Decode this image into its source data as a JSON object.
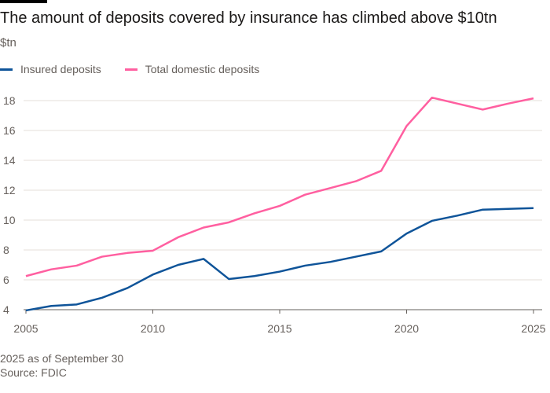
{
  "title": "The amount of deposits covered by insurance has climbed above $10tn",
  "footnote": "2025 as of September 30",
  "source": "Source: FDIC",
  "chart_data": {
    "type": "line",
    "title": "The amount of deposits covered by insurance has climbed above $10tn",
    "ylabel": "$tn",
    "xlabel": "",
    "x": [
      2005,
      2006,
      2007,
      2008,
      2009,
      2010,
      2011,
      2012,
      2013,
      2014,
      2015,
      2016,
      2017,
      2018,
      2019,
      2020,
      2021,
      2022,
      2023,
      2024,
      2025
    ],
    "series": [
      {
        "name": "Insured deposits",
        "color": "#0f5499",
        "values": [
          3.95,
          4.25,
          4.35,
          4.8,
          5.45,
          6.35,
          7.0,
          7.4,
          6.05,
          6.25,
          6.55,
          6.95,
          7.2,
          7.55,
          7.9,
          9.1,
          9.95,
          10.3,
          10.7,
          10.75,
          10.8
        ]
      },
      {
        "name": "Total domestic deposits",
        "color": "#ff5fa0",
        "values": [
          6.25,
          6.7,
          6.95,
          7.55,
          7.8,
          7.95,
          8.85,
          9.5,
          9.85,
          10.45,
          10.95,
          11.7,
          12.15,
          12.6,
          13.3,
          16.3,
          18.2,
          17.8,
          17.4,
          17.8,
          18.15
        ]
      }
    ],
    "xlim": [
      2005,
      2025
    ],
    "ylim": [
      4,
      18
    ],
    "xticks": [
      "2005",
      "2010",
      "2015",
      "2020",
      "2025"
    ],
    "yticks": [
      "4",
      "6",
      "8",
      "10",
      "12",
      "14",
      "16",
      "18"
    ],
    "grid": true,
    "legend": "top-left"
  }
}
